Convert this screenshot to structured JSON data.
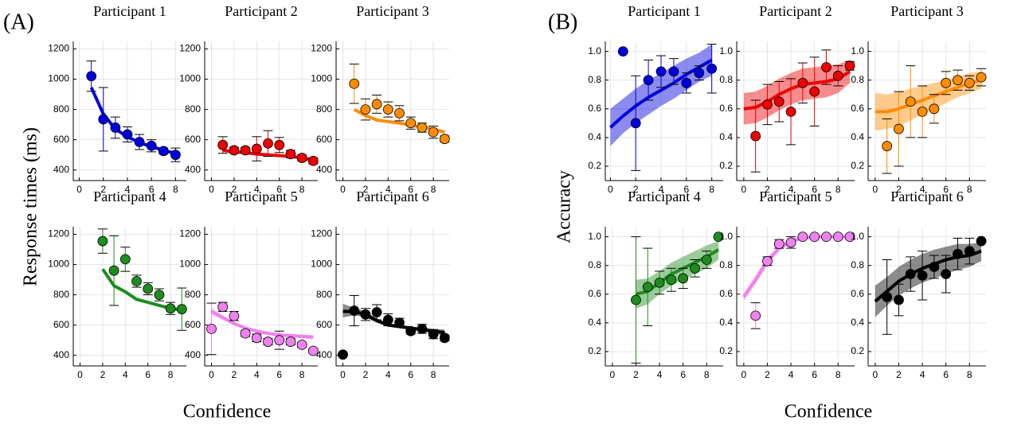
{
  "panels": [
    {
      "label": "(A)",
      "y_label": "Response times (ms)",
      "x_label": "Confidence"
    },
    {
      "label": "(B)",
      "y_label": "Accuracy",
      "x_label": "Confidence"
    }
  ],
  "chart_data": [
    {
      "type": "scatter",
      "title": "Participant 1",
      "color": "#0000dd",
      "x": [
        1,
        2,
        3,
        4,
        5,
        6,
        7,
        8
      ],
      "values": [
        1020,
        735,
        680,
        635,
        585,
        560,
        525,
        500
      ],
      "errors": [
        100,
        210,
        70,
        50,
        50,
        40,
        20,
        45
      ],
      "model_x": [
        1,
        2,
        3,
        4,
        5,
        6,
        7,
        8
      ],
      "model_values": [
        945,
        770,
        670,
        620,
        580,
        555,
        530,
        510
      ],
      "xlim": [
        -0.5,
        8.9
      ],
      "xticks": [
        0,
        2,
        4,
        6,
        8
      ],
      "ylim": [
        330,
        1250
      ],
      "yticks": [
        400,
        600,
        800,
        1000,
        1200
      ],
      "grid": true
    },
    {
      "type": "scatter",
      "title": "Participant 2",
      "color": "#ee0000",
      "x": [
        1,
        2,
        3,
        4,
        5,
        6,
        7,
        8,
        9
      ],
      "values": [
        565,
        530,
        530,
        540,
        575,
        565,
        505,
        480,
        460
      ],
      "errors": [
        55,
        20,
        20,
        80,
        85,
        50,
        25,
        20,
        20
      ],
      "model_x": [
        1,
        2,
        3,
        4,
        5,
        6,
        7,
        8,
        9
      ],
      "model_values": [
        530,
        520,
        515,
        505,
        500,
        495,
        490,
        480,
        465
      ],
      "xlim": [
        -0.6,
        9.4
      ],
      "xticks": [
        0,
        2,
        4,
        6,
        8
      ],
      "ylim": [
        330,
        1250
      ],
      "yticks": [
        400,
        600,
        800,
        1000,
        1200
      ],
      "grid": true
    },
    {
      "type": "scatter",
      "title": "Participant 3",
      "color": "#ff8c00",
      "x": [
        1,
        2,
        3,
        4,
        5,
        6,
        7,
        8,
        9
      ],
      "values": [
        970,
        800,
        835,
        800,
        775,
        710,
        680,
        650,
        605
      ],
      "errors": [
        130,
        70,
        60,
        50,
        50,
        40,
        30,
        40,
        20
      ],
      "model_x": [
        1,
        2,
        3,
        4,
        5,
        6,
        7,
        8,
        9
      ],
      "model_values": [
        800,
        760,
        730,
        720,
        710,
        695,
        685,
        670,
        650
      ],
      "xlim": [
        -0.6,
        9.4
      ],
      "xticks": [
        0,
        2,
        4,
        6,
        8
      ],
      "ylim": [
        330,
        1250
      ],
      "yticks": [
        400,
        600,
        800,
        1000,
        1200
      ],
      "grid": true
    },
    {
      "type": "scatter",
      "title": "Participant 4",
      "color": "#1e8c1e",
      "x": [
        2,
        3,
        4,
        5,
        6,
        7,
        8,
        9
      ],
      "values": [
        1155,
        960,
        1035,
        890,
        840,
        800,
        710,
        705
      ],
      "errors": [
        80,
        230,
        80,
        40,
        40,
        40,
        40,
        140
      ],
      "model_x": [
        2,
        3,
        4,
        5,
        6,
        7,
        8,
        9
      ],
      "model_values": [
        970,
        860,
        820,
        770,
        750,
        730,
        710,
        700
      ],
      "xlim": [
        -0.6,
        9.4
      ],
      "xticks": [
        0,
        2,
        4,
        6,
        8
      ],
      "ylim": [
        330,
        1250
      ],
      "yticks": [
        400,
        600,
        800,
        1000,
        1200
      ],
      "grid": true
    },
    {
      "type": "scatter",
      "title": "Participant 5",
      "color": "#ee82ee",
      "x": [
        0,
        1,
        2,
        3,
        4,
        5,
        6,
        7,
        8,
        9
      ],
      "values": [
        575,
        720,
        660,
        545,
        515,
        490,
        500,
        490,
        470,
        430
      ],
      "errors": [
        170,
        30,
        30,
        20,
        25,
        20,
        60,
        20,
        15,
        15
      ],
      "model_x": [
        0,
        1,
        2,
        3,
        4,
        5,
        6,
        7,
        8,
        9
      ],
      "model_values": [
        690,
        650,
        610,
        580,
        560,
        545,
        535,
        530,
        525,
        520
      ],
      "band_low": [
        670,
        635,
        598,
        570,
        550,
        535,
        525,
        518,
        512,
        505
      ],
      "band_high": [
        710,
        665,
        622,
        590,
        570,
        555,
        545,
        542,
        538,
        535
      ],
      "xlim": [
        -0.6,
        9.4
      ],
      "xticks": [
        0,
        2,
        4,
        6,
        8
      ],
      "ylim": [
        330,
        1250
      ],
      "yticks": [
        400,
        600,
        800,
        1000,
        1200
      ],
      "grid": true
    },
    {
      "type": "scatter",
      "title": "Participant 6",
      "color": "#000000",
      "x": [
        0,
        1,
        2,
        3,
        4,
        5,
        6,
        7,
        8,
        9
      ],
      "values": [
        405,
        695,
        670,
        685,
        635,
        615,
        560,
        575,
        540,
        515
      ],
      "errors": [
        10,
        100,
        40,
        50,
        40,
        30,
        20,
        30,
        30,
        20
      ],
      "model_x": [
        0,
        1,
        2,
        3,
        4,
        5,
        6,
        7,
        8,
        9
      ],
      "model_values": [
        690,
        690,
        670,
        630,
        600,
        590,
        580,
        570,
        560,
        550
      ],
      "band_low": [
        650,
        665,
        650,
        615,
        590,
        580,
        570,
        558,
        545,
        530
      ],
      "band_high": [
        740,
        715,
        690,
        645,
        612,
        600,
        590,
        582,
        575,
        570
      ],
      "xlim": [
        -0.6,
        9.4
      ],
      "xticks": [
        0,
        2,
        4,
        6,
        8
      ],
      "ylim": [
        330,
        1250
      ],
      "yticks": [
        400,
        600,
        800,
        1000,
        1200
      ],
      "grid": true
    },
    {
      "type": "scatter",
      "title": "Participant 1",
      "color": "#0000dd",
      "x": [
        1,
        2,
        3,
        4,
        5,
        6,
        7,
        8
      ],
      "values": [
        1.0,
        0.5,
        0.8,
        0.86,
        0.86,
        0.78,
        0.85,
        0.88
      ],
      "errors": [
        0,
        0.33,
        0.14,
        0.11,
        0.09,
        0.07,
        0.05,
        0.17
      ],
      "model_x": [
        0,
        1,
        2,
        3,
        4,
        5,
        6,
        7,
        8
      ],
      "model_values": [
        0.47,
        0.55,
        0.62,
        0.68,
        0.73,
        0.78,
        0.84,
        0.89,
        0.94
      ],
      "band_low": [
        0.34,
        0.43,
        0.5,
        0.56,
        0.62,
        0.67,
        0.73,
        0.79,
        0.83
      ],
      "band_high": [
        0.6,
        0.67,
        0.74,
        0.8,
        0.85,
        0.9,
        0.95,
        0.99,
        1.05
      ],
      "xlim": [
        -0.4,
        8.9
      ],
      "xticks": [
        0,
        2,
        4,
        6,
        8
      ],
      "ylim": [
        0.1,
        1.07
      ],
      "yticks": [
        0.2,
        0.4,
        0.6,
        0.8,
        {
          "value": 1,
          "label": "1.0"
        }
      ],
      "grid": true
    },
    {
      "type": "scatter",
      "title": "Participant 2",
      "color": "#ee0000",
      "x": [
        1,
        2,
        3,
        4,
        5,
        6,
        7,
        8,
        9
      ],
      "values": [
        0.41,
        0.63,
        0.65,
        0.58,
        0.78,
        0.72,
        0.89,
        0.83,
        0.9
      ],
      "errors": [
        0.25,
        0.14,
        0.14,
        0.23,
        0.14,
        0.24,
        0.12,
        0.07,
        0.03
      ],
      "model_x": [
        0,
        1,
        2,
        3,
        4,
        5,
        6,
        7,
        8,
        9
      ],
      "model_values": [
        0.6,
        0.61,
        0.65,
        0.7,
        0.74,
        0.77,
        0.78,
        0.79,
        0.81,
        0.86
      ],
      "band_low": [
        0.49,
        0.5,
        0.54,
        0.59,
        0.63,
        0.66,
        0.67,
        0.68,
        0.71,
        0.78
      ],
      "band_high": [
        0.71,
        0.72,
        0.76,
        0.81,
        0.85,
        0.88,
        0.89,
        0.9,
        0.91,
        0.94
      ],
      "xlim": [
        -0.6,
        9.4
      ],
      "xticks": [
        0,
        2,
        4,
        6,
        8
      ],
      "ylim": [
        0.1,
        1.07
      ],
      "yticks": [
        0.2,
        0.4,
        0.6,
        0.8,
        {
          "value": 1,
          "label": "1.0"
        }
      ],
      "grid": true
    },
    {
      "type": "scatter",
      "title": "Participant 3",
      "color": "#ff8c00",
      "x": [
        1,
        2,
        3,
        4,
        5,
        6,
        7,
        8,
        9
      ],
      "values": [
        0.34,
        0.46,
        0.65,
        0.58,
        0.6,
        0.78,
        0.8,
        0.78,
        0.82
      ],
      "errors": [
        0.19,
        0.26,
        0.25,
        0.18,
        0.1,
        0.08,
        0.07,
        0.05,
        0.06
      ],
      "model_x": [
        0,
        1,
        2,
        3,
        4,
        5,
        6,
        7,
        8,
        9
      ],
      "model_values": [
        0.58,
        0.58,
        0.6,
        0.63,
        0.66,
        0.69,
        0.72,
        0.75,
        0.78,
        0.8
      ],
      "band_low": [
        0.45,
        0.46,
        0.48,
        0.52,
        0.56,
        0.6,
        0.64,
        0.68,
        0.71,
        0.74
      ],
      "band_high": [
        0.71,
        0.7,
        0.72,
        0.74,
        0.76,
        0.78,
        0.8,
        0.82,
        0.85,
        0.86
      ],
      "xlim": [
        -0.6,
        9.4
      ],
      "xticks": [
        0,
        2,
        4,
        6,
        8
      ],
      "ylim": [
        0.1,
        1.07
      ],
      "yticks": [
        0.2,
        0.4,
        0.6,
        0.8,
        {
          "value": 1,
          "label": "1.0"
        }
      ],
      "grid": true
    },
    {
      "type": "scatter",
      "title": "Participant 4",
      "color": "#1e8c1e",
      "x": [
        2,
        3,
        4,
        5,
        6,
        7,
        8,
        9
      ],
      "values": [
        0.56,
        0.65,
        0.68,
        0.7,
        0.71,
        0.78,
        0.84,
        1.0
      ],
      "errors": [
        0.44,
        0.27,
        0.08,
        0.08,
        0.07,
        0.06,
        0.06,
        0
      ],
      "model_x": [
        2,
        3,
        4,
        5,
        6,
        7,
        8,
        9
      ],
      "model_values": [
        0.6,
        0.62,
        0.68,
        0.74,
        0.78,
        0.82,
        0.86,
        0.91
      ],
      "band_low": [
        0.5,
        0.53,
        0.6,
        0.66,
        0.7,
        0.74,
        0.78,
        0.84
      ],
      "band_high": [
        0.7,
        0.71,
        0.76,
        0.82,
        0.86,
        0.9,
        0.94,
        0.97
      ],
      "xlim": [
        -0.6,
        9.4
      ],
      "xticks": [
        0,
        2,
        4,
        6,
        8
      ],
      "ylim": [
        0.1,
        1.07
      ],
      "yticks": [
        0.2,
        0.4,
        0.6,
        0.8,
        {
          "value": 1,
          "label": "1.0"
        }
      ],
      "grid": true
    },
    {
      "type": "scatter",
      "title": "Participant 5",
      "color": "#ee82ee",
      "x": [
        1,
        2,
        3,
        4,
        5,
        6,
        7,
        8,
        9
      ],
      "values": [
        0.45,
        0.83,
        0.95,
        0.96,
        1.0,
        1.0,
        1.0,
        1.0,
        1.0
      ],
      "errors": [
        0.09,
        0.03,
        0.03,
        0.04,
        0,
        0,
        0,
        0,
        0
      ],
      "model_x": [
        0,
        1,
        2,
        3,
        4,
        5,
        6,
        7,
        8,
        9
      ],
      "model_values": [
        0.58,
        0.7,
        0.83,
        0.92,
        0.97,
        0.99,
        1.0,
        1.0,
        1.0,
        1.0
      ],
      "band_low": [
        0.55,
        0.67,
        0.8,
        0.9,
        0.95,
        0.98,
        0.99,
        0.99,
        0.99,
        0.99
      ],
      "band_high": [
        0.61,
        0.73,
        0.86,
        0.94,
        0.99,
        1.0,
        1.01,
        1.01,
        1.01,
        1.01
      ],
      "xlim": [
        -0.6,
        9.4
      ],
      "xticks": [
        0,
        2,
        4,
        6,
        8
      ],
      "ylim": [
        0.1,
        1.07
      ],
      "yticks": [
        0.2,
        0.4,
        0.6,
        0.8,
        {
          "value": 1,
          "label": "1.0"
        }
      ],
      "grid": true
    },
    {
      "type": "scatter",
      "title": "Participant 6",
      "color": "#000000",
      "x": [
        1,
        2,
        3,
        4,
        5,
        6,
        7,
        8,
        9
      ],
      "values": [
        0.58,
        0.56,
        0.74,
        0.73,
        0.79,
        0.74,
        0.88,
        0.9,
        0.97
      ],
      "errors": [
        0.26,
        0.11,
        0.12,
        0.17,
        0.08,
        0.13,
        0.11,
        0.09,
        0.01
      ],
      "model_x": [
        0,
        1,
        2,
        3,
        4,
        5,
        6,
        7,
        8,
        9
      ],
      "model_values": [
        0.55,
        0.62,
        0.69,
        0.74,
        0.78,
        0.81,
        0.84,
        0.86,
        0.87,
        0.9
      ],
      "band_low": [
        0.44,
        0.52,
        0.59,
        0.64,
        0.68,
        0.71,
        0.74,
        0.77,
        0.79,
        0.83
      ],
      "band_high": [
        0.66,
        0.72,
        0.79,
        0.84,
        0.88,
        0.91,
        0.93,
        0.95,
        0.95,
        0.96
      ],
      "xlim": [
        -0.6,
        9.4
      ],
      "xticks": [
        0,
        2,
        4,
        6,
        8
      ],
      "ylim": [
        0.1,
        1.07
      ],
      "yticks": [
        0.2,
        0.4,
        0.6,
        0.8,
        {
          "value": 1,
          "label": "1.0"
        }
      ],
      "grid": true
    }
  ]
}
